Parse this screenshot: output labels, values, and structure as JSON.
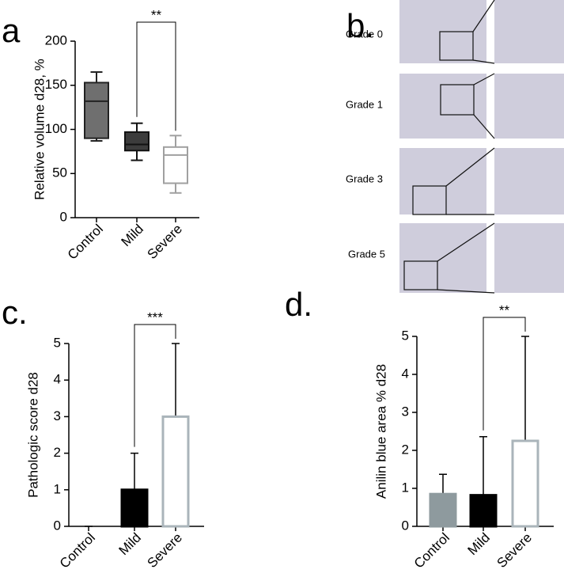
{
  "chart_data": [
    {
      "type": "box",
      "label": "a",
      "ylabel": "Relative volume d28, %",
      "categories": [
        "Control",
        "Mild",
        "Severe"
      ],
      "values": [
        {
          "min": 87,
          "q1": 90,
          "median": 132,
          "q3": 153,
          "max": 165
        },
        {
          "min": 65,
          "q1": 76,
          "median": 83,
          "q3": 97,
          "max": 107
        },
        {
          "min": 28,
          "q1": 39,
          "median": 71,
          "q3": 80,
          "max": 93
        }
      ],
      "colors": [
        "#6f6f6f",
        "#3c3c3c",
        "#ffffff"
      ],
      "edge_colors": [
        "#222222",
        "#111111",
        "#a0a0a0"
      ],
      "ylim": [
        0,
        200
      ],
      "yticks": [
        0,
        50,
        100,
        150,
        200
      ],
      "annotation": "**"
    },
    {
      "type": "image",
      "label": "b.",
      "rows": [
        "Grade 0",
        "Grade 1",
        "Grade 3",
        "Grade 5"
      ]
    },
    {
      "type": "bar",
      "label": "c.",
      "ylabel": "Pathologic score d28",
      "categories": [
        "Control",
        "Mild",
        "Severe"
      ],
      "values": [
        0,
        1,
        3
      ],
      "errors": [
        0,
        1,
        2
      ],
      "colors": [
        "#8e9a9e",
        "#000000",
        "#ffffff"
      ],
      "edge_colors": [
        "#8e9a9e",
        "#000000",
        "#aab4ba"
      ],
      "ylim": [
        0,
        5
      ],
      "yticks": [
        0,
        1,
        2,
        3,
        4,
        5
      ],
      "annotation": "***"
    },
    {
      "type": "bar",
      "label": "d.",
      "ylabel": "Anilin blue area % d28",
      "categories": [
        "Control",
        "Mild",
        "Severe"
      ],
      "values": [
        0.85,
        0.82,
        2.25
      ],
      "errors": [
        0.52,
        1.54,
        2.75
      ],
      "colors": [
        "#8e9a9e",
        "#000000",
        "#ffffff"
      ],
      "edge_colors": [
        "#8e9a9e",
        "#000000",
        "#aab4ba"
      ],
      "ylim": [
        0,
        5
      ],
      "yticks": [
        0,
        1,
        2,
        3,
        4,
        5
      ],
      "annotation": "**"
    }
  ]
}
